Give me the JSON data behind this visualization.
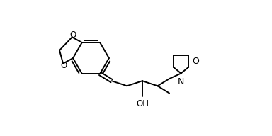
{
  "line_color": "#000000",
  "bg_color": "#ffffff",
  "line_width": 1.4,
  "font_size": 8.5,
  "figsize": [
    3.84,
    1.92
  ],
  "dpi": 100,
  "xlim": [
    0.0,
    10.0
  ],
  "ylim": [
    -1.5,
    6.0
  ]
}
